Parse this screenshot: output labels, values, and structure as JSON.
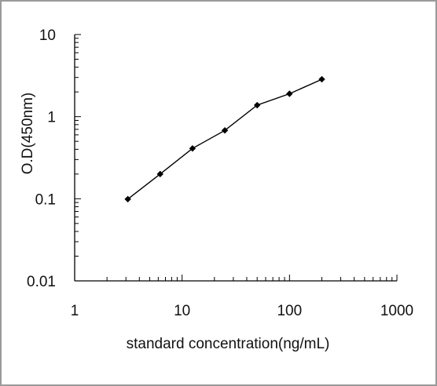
{
  "chart_data": {
    "type": "line",
    "xlabel": "standard concentration(ng/mL)",
    "ylabel": "O.D(450nm)",
    "xscale": "log",
    "yscale": "log",
    "xlim": [
      1,
      1000
    ],
    "ylim": [
      0.01,
      10
    ],
    "x_tick_labels": [
      "1",
      "10",
      "100",
      "1000"
    ],
    "y_tick_labels": [
      "0.01",
      "0.1",
      "1",
      "10"
    ],
    "grid": false,
    "legend": "none",
    "marker": "diamond",
    "line_color": "#000000",
    "series": [
      {
        "x": [
          3.125,
          6.25,
          12.5,
          25,
          50,
          100,
          200
        ],
        "y": [
          0.099,
          0.2,
          0.41,
          0.68,
          1.38,
          1.9,
          2.85
        ]
      }
    ]
  }
}
